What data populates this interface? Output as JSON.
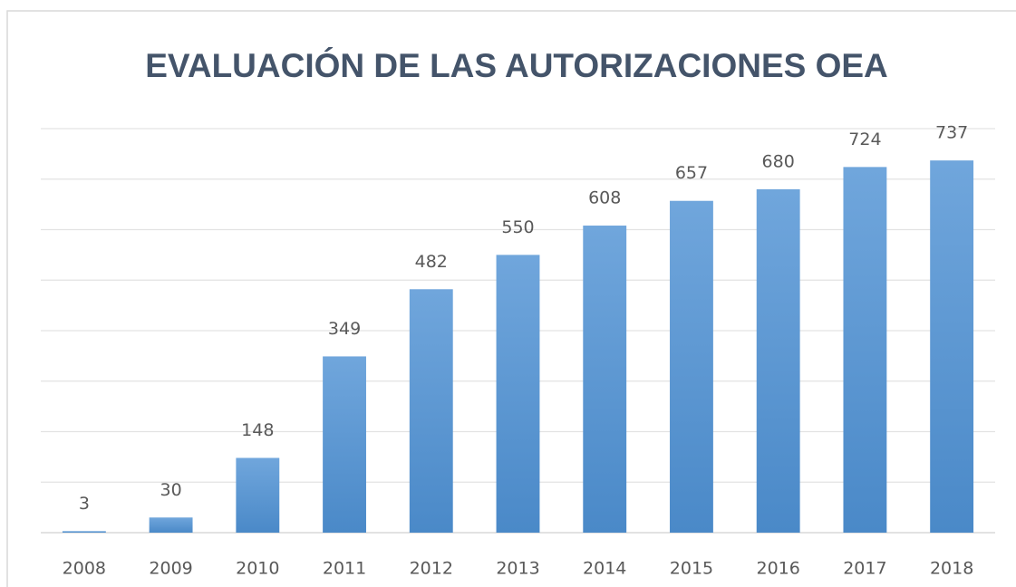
{
  "chart_data": {
    "type": "bar",
    "title": "EVALUACIÓN DE LAS AUTORIZACIONES OEA",
    "categories": [
      "2008",
      "2009",
      "2010",
      "2011",
      "2012",
      "2013",
      "2014",
      "2015",
      "2016",
      "2017",
      "2018"
    ],
    "values": [
      3,
      30,
      148,
      349,
      482,
      550,
      608,
      657,
      680,
      724,
      737
    ],
    "color": "#5b9bd5",
    "ylim": [
      0,
      800
    ],
    "yticks": [
      0,
      100,
      200,
      300,
      400,
      500,
      600,
      700,
      800
    ],
    "grid": true,
    "ytick_labels_visible": false,
    "data_labels": true
  }
}
